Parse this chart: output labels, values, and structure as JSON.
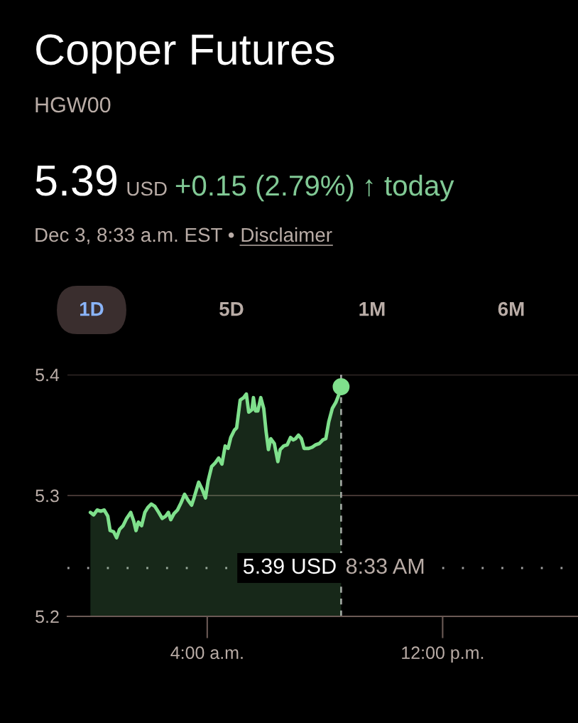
{
  "chart_data": {
    "type": "area",
    "title": "Copper Futures",
    "subtitle": "HGW00",
    "annotations": [
      "5.39",
      "USD",
      "+0.15 (2.79%)",
      "↑ today",
      "Dec 3, 8:33 a.m. EST •",
      "Disclaimer",
      "1D",
      "5D",
      "1M",
      "6M",
      "5.39 USD",
      "8:33 AM"
    ],
    "xlim": [
      -0.75,
      16.6
    ],
    "xticks": [
      {
        "value": 4,
        "label": "4:00 a.m."
      },
      {
        "value": 12,
        "label": "12:00 p.m."
      }
    ],
    "ylim": [
      5.2,
      5.4
    ],
    "yticks": [
      5.2,
      5.3,
      5.4
    ],
    "grid": "y",
    "ref_lines": [
      {
        "axis": "y",
        "value": 5.24,
        "color": "#9e9e9e",
        "line_style": "dotted"
      },
      {
        "axis": "x",
        "value": 8.55,
        "color": "#9e9e9e",
        "line_style": "dashed"
      }
    ],
    "series": [
      {
        "color": "#7fe08c",
        "x": [
          0.03,
          0.14,
          0.26,
          0.38,
          0.5,
          0.62,
          0.7,
          0.82,
          0.92,
          1.02,
          1.14,
          1.26,
          1.4,
          1.5,
          1.58,
          1.66,
          1.77,
          1.88,
          1.98,
          2.1,
          2.22,
          2.35,
          2.47,
          2.59,
          2.68,
          2.76,
          2.87,
          2.99,
          3.11,
          3.23,
          3.35,
          3.47,
          3.55,
          3.71,
          3.83,
          3.94,
          4.03,
          4.15,
          4.27,
          4.39,
          4.5,
          4.61,
          4.71,
          4.8,
          4.92,
          5.0,
          5.12,
          5.24,
          5.33,
          5.41,
          5.52,
          5.57,
          5.64,
          5.72,
          5.82,
          5.92,
          6.0,
          6.08,
          6.16,
          6.28,
          6.4,
          6.48,
          6.6,
          6.72,
          6.83,
          6.92,
          7.0,
          7.1,
          7.2,
          7.29,
          7.45,
          7.57,
          7.69,
          7.81,
          7.93,
          8.03,
          8.13,
          8.25,
          8.37,
          8.45,
          8.55
        ],
        "values": [
          5.286,
          5.284,
          5.288,
          5.287,
          5.288,
          5.283,
          5.271,
          5.27,
          5.265,
          5.272,
          5.275,
          5.281,
          5.286,
          5.279,
          5.271,
          5.278,
          5.275,
          5.286,
          5.29,
          5.293,
          5.291,
          5.286,
          5.281,
          5.283,
          5.286,
          5.28,
          5.285,
          5.288,
          5.294,
          5.301,
          5.296,
          5.292,
          5.298,
          5.311,
          5.305,
          5.298,
          5.312,
          5.324,
          5.327,
          5.331,
          5.326,
          5.341,
          5.339,
          5.348,
          5.354,
          5.356,
          5.379,
          5.381,
          5.384,
          5.369,
          5.371,
          5.381,
          5.37,
          5.37,
          5.381,
          5.372,
          5.353,
          5.338,
          5.347,
          5.343,
          5.328,
          5.338,
          5.341,
          5.342,
          5.348,
          5.346,
          5.347,
          5.35,
          5.347,
          5.339,
          5.339,
          5.34,
          5.342,
          5.343,
          5.346,
          5.347,
          5.361,
          5.372,
          5.377,
          5.382,
          5.39
        ]
      },
      {
        "type": "scatter",
        "color": "#7fe08c",
        "marker": "circle",
        "x": [
          8.55
        ],
        "values": [
          5.39
        ]
      }
    ]
  }
}
